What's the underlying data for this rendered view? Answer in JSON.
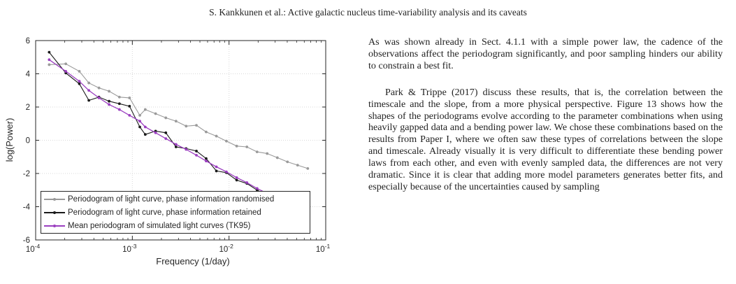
{
  "running_head": "S. Kankkunen et al.: Active galactic nucleus time-variability analysis and its caveats",
  "paragraphs": [
    "As was shown already in Sect. 4.1.1 with a simple power law, the cadence of the observations affect the periodogram significantly, and poor sampling hinders our ability to constrain a best fit.",
    "Park & Trippe (2017) discuss these results, that is, the correlation between the timescale and the slope, from a more physical perspective. Figure 13 shows how the shapes of the periodograms evolve according to the parameter combinations when using heavily gapped data and a bending power law. We chose these combinations based on the results from Paper I, where we often saw these types of correlations between the slope and timescale. Already visually it is very difficult to differentiate these bending power laws from each other, and even with evenly sampled data, the differences are not very dramatic. Since it is clear that adding more model parameters generates better fits, and especially because of the uncertainties caused by sampling"
  ],
  "chart_data": {
    "type": "line",
    "xscale": "log",
    "xlim": [
      0.0001,
      0.1
    ],
    "ylim": [
      -6,
      6
    ],
    "xlabel": "Frequency (1/day)",
    "ylabel": "log(Power)",
    "x_ticks": [
      "10^-4",
      "10^-3",
      "10^-2",
      "10^-1"
    ],
    "y_ticks": [
      "-6",
      "-4",
      "-2",
      "0",
      "2",
      "4",
      "6"
    ],
    "grid": true,
    "legend_position": "bottom-left",
    "x": [
      0.000138,
      0.000205,
      0.000283,
      0.000355,
      0.000452,
      0.000575,
      0.000735,
      0.000935,
      0.001195,
      0.00136,
      0.00174,
      0.00222,
      0.00283,
      0.0036,
      0.0046,
      0.0058,
      0.0074,
      0.0094,
      0.012,
      0.0153,
      0.0195,
      0.0248,
      0.0316,
      0.0402,
      0.0512,
      0.0652
    ],
    "series": [
      {
        "name": "Periodogram of light curve, phase information randomised",
        "color": "#9a9a9a",
        "values": [
          4.55,
          4.6,
          4.15,
          3.45,
          3.15,
          2.95,
          2.6,
          2.55,
          1.5,
          1.85,
          1.6,
          1.35,
          1.15,
          0.85,
          0.9,
          0.5,
          0.25,
          -0.05,
          -0.35,
          -0.4,
          -0.7,
          -0.8,
          -1.05,
          -1.3,
          -1.5,
          -1.7
        ]
      },
      {
        "name": "Periodogram of light curve, phase information retained",
        "color": "#1a1a1a",
        "values": [
          5.3,
          4.05,
          3.4,
          2.4,
          2.6,
          2.35,
          2.2,
          2.05,
          0.8,
          0.35,
          0.55,
          0.45,
          -0.4,
          -0.5,
          -0.65,
          -1.1,
          -1.85,
          -1.95,
          -2.4,
          -2.6,
          -3.0,
          -3.3,
          -3.5,
          -3.9,
          -4.2,
          -4.2
        ]
      },
      {
        "name": "Mean periodogram of simulated light curves (TK95)",
        "color": "#9b3fc0",
        "values": [
          4.85,
          4.15,
          3.55,
          3.0,
          2.55,
          2.15,
          1.85,
          1.5,
          1.15,
          0.8,
          0.45,
          0.1,
          -0.25,
          -0.55,
          -0.9,
          -1.25,
          -1.6,
          -1.9,
          -2.25,
          -2.55,
          -2.9,
          -3.2,
          -3.5,
          -3.8,
          -4.0,
          -4.25
        ]
      }
    ]
  }
}
